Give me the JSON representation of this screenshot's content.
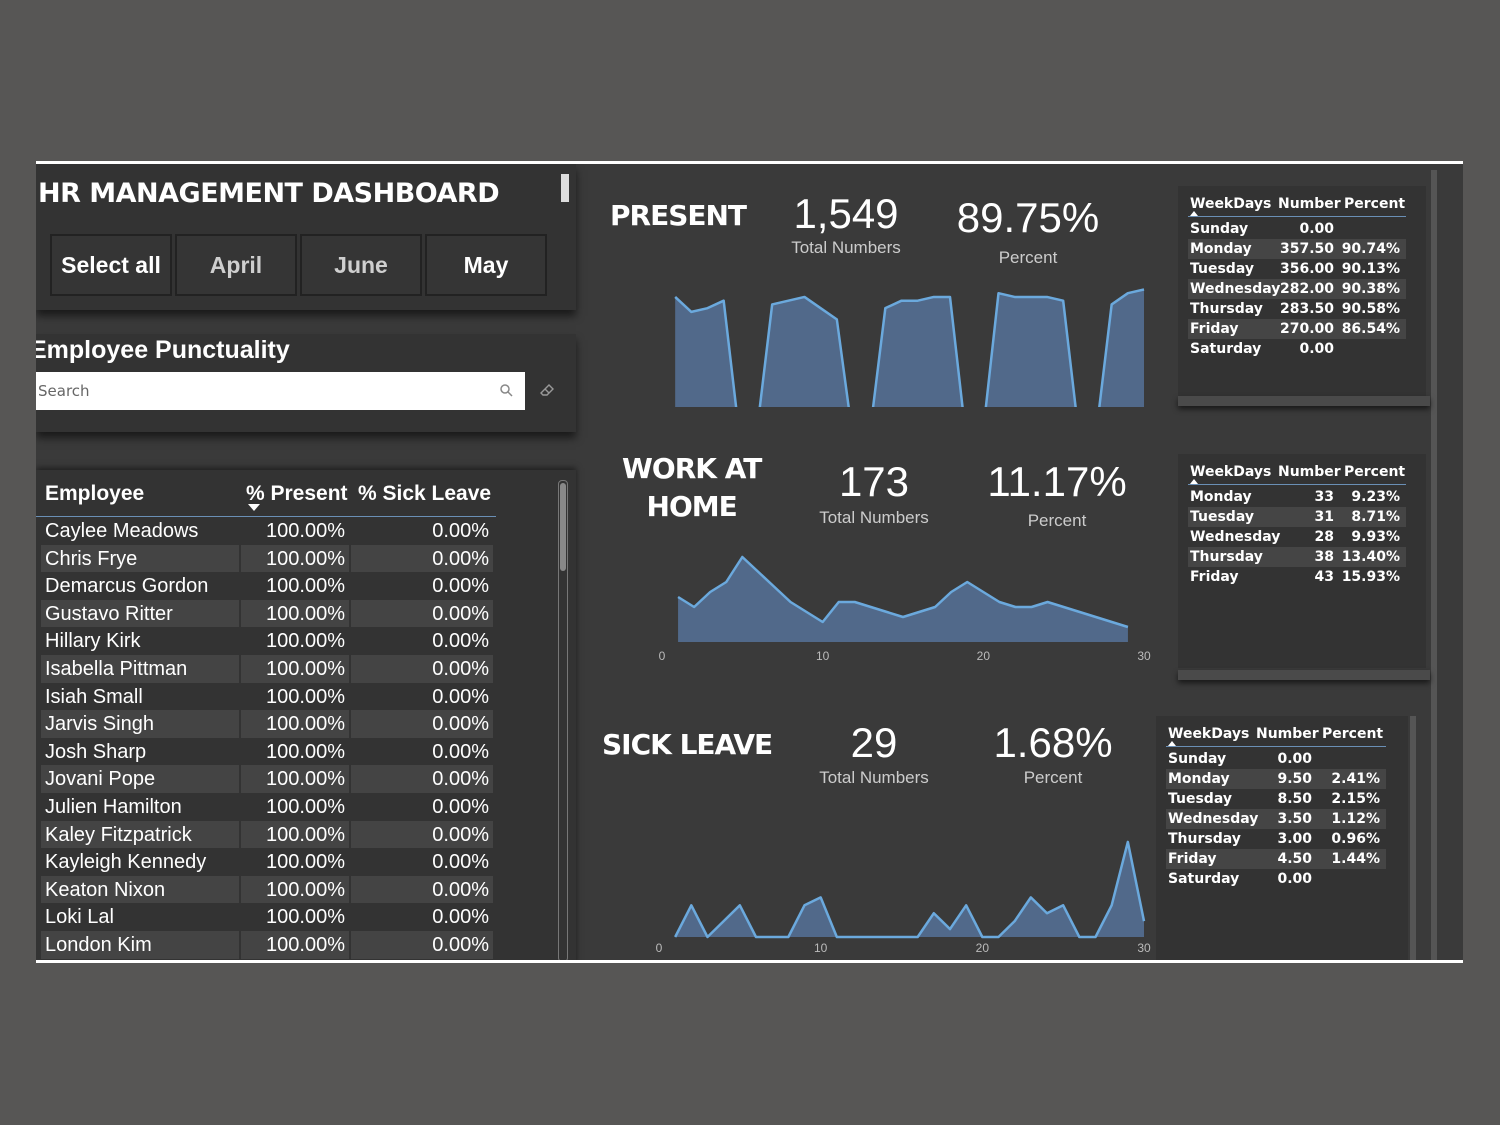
{
  "title": "HR MANAGEMENT DASHBOARD",
  "slicer": [
    {
      "label": "Select all",
      "selected": true
    },
    {
      "label": "April",
      "selected": false
    },
    {
      "label": "June",
      "selected": false
    },
    {
      "label": "May",
      "selected": true
    }
  ],
  "punctuality": {
    "title": "Employee Punctuality",
    "search_placeholder": "Search"
  },
  "employee_table": {
    "headers": {
      "employee": "Employee",
      "present": "% Present",
      "sick": "% Sick Leave"
    },
    "rows": [
      {
        "name": "Caylee Meadows",
        "present": "100.00%",
        "sick": "0.00%"
      },
      {
        "name": "Chris Frye",
        "present": "100.00%",
        "sick": "0.00%"
      },
      {
        "name": "Demarcus Gordon",
        "present": "100.00%",
        "sick": "0.00%"
      },
      {
        "name": "Gustavo Ritter",
        "present": "100.00%",
        "sick": "0.00%"
      },
      {
        "name": "Hillary Kirk",
        "present": "100.00%",
        "sick": "0.00%"
      },
      {
        "name": "Isabella Pittman",
        "present": "100.00%",
        "sick": "0.00%"
      },
      {
        "name": "Isiah Small",
        "present": "100.00%",
        "sick": "0.00%"
      },
      {
        "name": "Jarvis Singh",
        "present": "100.00%",
        "sick": "0.00%"
      },
      {
        "name": "Josh Sharp",
        "present": "100.00%",
        "sick": "0.00%"
      },
      {
        "name": "Jovani Pope",
        "present": "100.00%",
        "sick": "0.00%"
      },
      {
        "name": "Julien Hamilton",
        "present": "100.00%",
        "sick": "0.00%"
      },
      {
        "name": "Kaley Fitzpatrick",
        "present": "100.00%",
        "sick": "0.00%"
      },
      {
        "name": "Kayleigh Kennedy",
        "present": "100.00%",
        "sick": "0.00%"
      },
      {
        "name": "Keaton Nixon",
        "present": "100.00%",
        "sick": "0.00%"
      },
      {
        "name": "Loki Lal",
        "present": "100.00%",
        "sick": "0.00%"
      },
      {
        "name": "London Kim",
        "present": "100.00%",
        "sick": "0.00%"
      }
    ]
  },
  "sections": {
    "present": {
      "label_lines": [
        "PRESENT"
      ],
      "total": "1,549",
      "total_label": "Total Numbers",
      "percent": "89.75%",
      "percent_label": "Percent",
      "table": {
        "headers": [
          "WeekDays",
          "Number",
          "Percent"
        ],
        "rows": [
          [
            "Sunday",
            "0.00",
            ""
          ],
          [
            "Monday",
            "357.50",
            "90.74%"
          ],
          [
            "Tuesday",
            "356.00",
            "90.13%"
          ],
          [
            "Wednesday",
            "282.00",
            "90.38%"
          ],
          [
            "Thursday",
            "283.50",
            "90.58%"
          ],
          [
            "Friday",
            "270.00",
            "86.54%"
          ],
          [
            "Saturday",
            "0.00",
            ""
          ]
        ]
      }
    },
    "wah": {
      "label_lines": [
        "WORK AT",
        "HOME"
      ],
      "total": "173",
      "total_label": "Total Numbers",
      "percent": "11.17%",
      "percent_label": "Percent",
      "table": {
        "headers": [
          "WeekDays",
          "Number",
          "Percent"
        ],
        "rows": [
          [
            "Monday",
            "33",
            "9.23%"
          ],
          [
            "Tuesday",
            "31",
            "8.71%"
          ],
          [
            "Wednesday",
            "28",
            "9.93%"
          ],
          [
            "Thursday",
            "38",
            "13.40%"
          ],
          [
            "Friday",
            "43",
            "15.93%"
          ]
        ]
      }
    },
    "sick": {
      "label_lines": [
        "SICK LEAVE"
      ],
      "total": "29",
      "total_label": "Total Numbers",
      "percent": "1.68%",
      "percent_label": "Percent",
      "table": {
        "headers": [
          "WeekDays",
          "Number",
          "Percent"
        ],
        "rows": [
          [
            "Sunday",
            "0.00",
            ""
          ],
          [
            "Monday",
            "9.50",
            "2.41%"
          ],
          [
            "Tuesday",
            "8.50",
            "2.15%"
          ],
          [
            "Wednesday",
            "3.50",
            "1.12%"
          ],
          [
            "Thursday",
            "3.00",
            "0.96%"
          ],
          [
            "Friday",
            "4.50",
            "1.44%"
          ],
          [
            "Saturday",
            "0.00",
            ""
          ]
        ]
      }
    }
  },
  "colors": {
    "area_fill": "#51698a",
    "area_line": "#6ba9dd",
    "background": "#3a3a3a"
  },
  "chart_data": [
    {
      "type": "area",
      "title": "",
      "x": [
        1,
        2,
        3,
        4,
        5,
        6,
        7,
        8,
        9,
        10,
        11,
        12,
        13,
        14,
        15,
        16,
        17,
        18,
        19,
        20,
        21,
        22,
        23,
        24,
        25,
        26,
        27,
        28,
        29,
        30
      ],
      "values": [
        38,
        34,
        35,
        37,
        0,
        0,
        36,
        37,
        38,
        35,
        32,
        0,
        0,
        35,
        37,
        37,
        38,
        38,
        0,
        0,
        39,
        38,
        38,
        38,
        37,
        0,
        0,
        36,
        39,
        40
      ],
      "xticks": [
        "0",
        "10",
        "20",
        "30"
      ],
      "xlim": [
        0,
        30
      ],
      "ylim": [
        0,
        42
      ]
    },
    {
      "type": "area",
      "title": "",
      "x": [
        1,
        2,
        3,
        4,
        5,
        6,
        7,
        8,
        9,
        10,
        11,
        12,
        13,
        14,
        15,
        16,
        17,
        18,
        19,
        20,
        21,
        22,
        23,
        24,
        25,
        26,
        27,
        28,
        29
      ],
      "values": [
        9,
        7,
        10,
        12,
        17,
        14,
        11,
        8,
        6,
        4,
        8,
        8,
        7,
        6,
        5,
        6,
        7,
        10,
        12,
        10,
        8,
        7,
        7,
        8,
        7,
        6,
        5,
        4,
        3
      ],
      "xticks": [
        "0",
        "10",
        "20",
        "30"
      ],
      "xlim": [
        0,
        30
      ],
      "ylim": [
        0,
        18
      ]
    },
    {
      "type": "area",
      "title": "",
      "x": [
        1,
        2,
        3,
        4,
        5,
        6,
        7,
        8,
        9,
        10,
        11,
        12,
        13,
        14,
        15,
        16,
        17,
        18,
        19,
        20,
        21,
        22,
        23,
        24,
        25,
        26,
        27,
        28,
        29,
        30
      ],
      "values": [
        0,
        2,
        0,
        1,
        2,
        0,
        0,
        0,
        2,
        2.5,
        0,
        0,
        0,
        0,
        0,
        0,
        1.5,
        0.5,
        2,
        0,
        0,
        1,
        2.5,
        1.5,
        2,
        0,
        0,
        2,
        6,
        1
      ],
      "xticks": [
        "0",
        "10",
        "20",
        "30"
      ],
      "xlim": [
        0,
        30
      ],
      "ylim": [
        0,
        6.5
      ]
    }
  ]
}
